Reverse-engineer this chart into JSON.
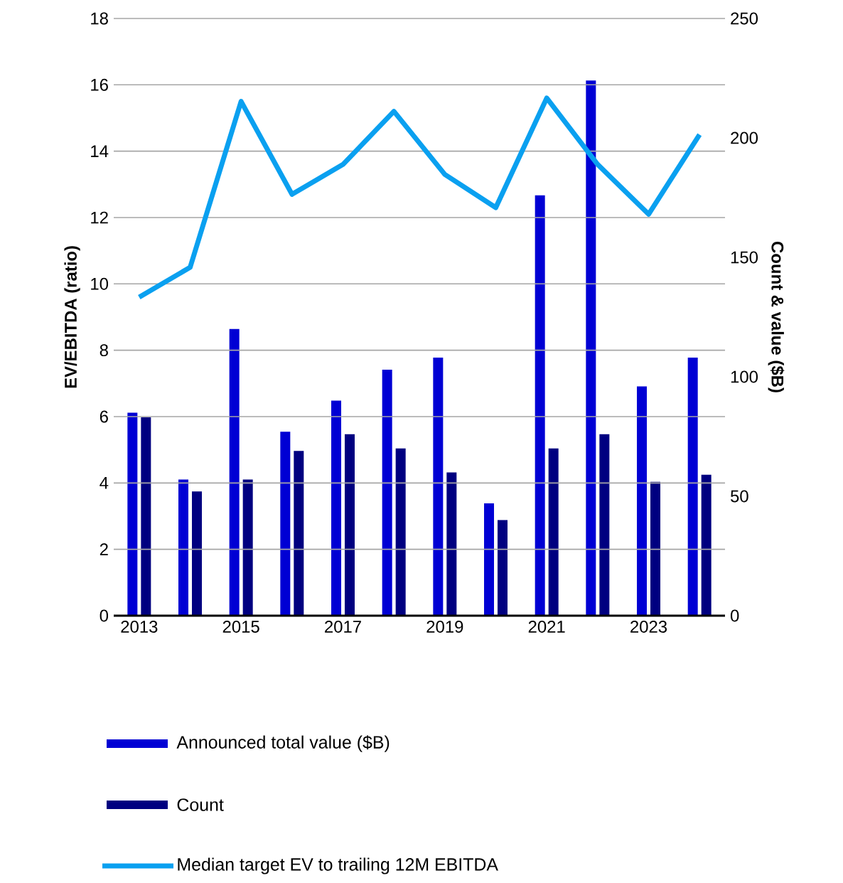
{
  "chart_data": {
    "type": "bar",
    "ylabel": "EV/EBITDA (ratio)",
    "y2label": "Count & value ($B)",
    "x": [
      2013,
      2014,
      2015,
      2016,
      2017,
      2018,
      2019,
      2020,
      2021,
      2022,
      2023,
      2024
    ],
    "xlim": [
      2012.5,
      2024.5
    ],
    "xticks": [
      2013,
      2015,
      2017,
      2019,
      2021,
      2023
    ],
    "ylim": [
      0,
      18
    ],
    "yticks": [
      0,
      2,
      4,
      6,
      8,
      10,
      12,
      14,
      16,
      18
    ],
    "y2lim": [
      0,
      250
    ],
    "y2ticks": [
      0,
      50,
      100,
      150,
      200,
      250
    ],
    "grid": "y",
    "legend": "bottom",
    "series": [
      {
        "name": "Announced total value ($B)",
        "axis": "y2",
        "color": "#0000d4",
        "values": [
          85,
          57,
          120,
          77,
          90,
          103,
          108,
          47,
          176,
          224,
          96,
          108
        ]
      },
      {
        "name": "Count",
        "axis": "y2",
        "color": "#000080",
        "values": [
          83,
          52,
          57,
          69,
          76,
          70,
          60,
          40,
          70,
          76,
          56,
          59
        ]
      },
      {
        "name": "Median target EV to trailing 12M EBITDA",
        "type": "line",
        "color": "#0aa0f0",
        "values": [
          9.6,
          10.5,
          15.5,
          12.7,
          13.6,
          15.2,
          13.3,
          12.3,
          15.6,
          13.6,
          12.1,
          14.5
        ]
      }
    ]
  }
}
